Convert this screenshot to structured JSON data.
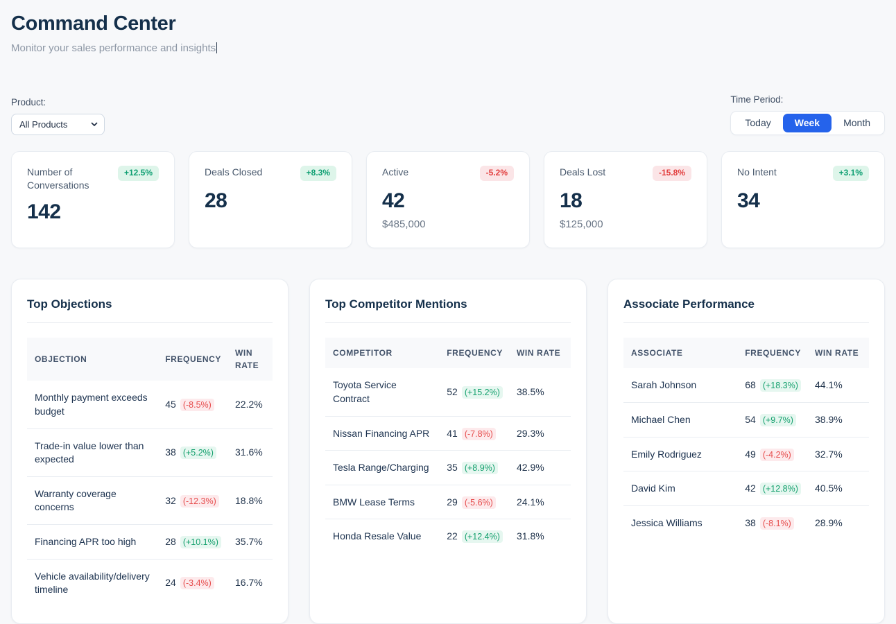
{
  "page": {
    "title": "Command Center",
    "subtitle": "Monitor your sales performance and insights"
  },
  "filters": {
    "product_label": "Product:",
    "product_selected": "All Products",
    "time_period_label": "Time Period:",
    "time_options": [
      {
        "label": "Today",
        "selected": false
      },
      {
        "label": "Week",
        "selected": true
      },
      {
        "label": "Month",
        "selected": false
      }
    ]
  },
  "stats": [
    {
      "label": "Number of Conversations",
      "badge": "+12.5%",
      "trend": "up",
      "value": "142",
      "sub": ""
    },
    {
      "label": "Deals Closed",
      "badge": "+8.3%",
      "trend": "up",
      "value": "28",
      "sub": ""
    },
    {
      "label": "Active",
      "badge": "-5.2%",
      "trend": "down",
      "value": "42",
      "sub": "$485,000"
    },
    {
      "label": "Deals Lost",
      "badge": "-15.8%",
      "trend": "down",
      "value": "18",
      "sub": "$125,000"
    },
    {
      "label": "No Intent",
      "badge": "+3.1%",
      "trend": "up",
      "value": "34",
      "sub": ""
    }
  ],
  "tables": [
    {
      "title": "Top Objections",
      "columns": [
        "Objection",
        "Frequency",
        "Win Rate"
      ],
      "rows": [
        {
          "name": "Monthly payment exceeds budget",
          "frequency": "45",
          "change": "(-8.5%)",
          "trend": "down",
          "win_rate": "22.2%"
        },
        {
          "name": "Trade-in value lower than expected",
          "frequency": "38",
          "change": "(+5.2%)",
          "trend": "up",
          "win_rate": "31.6%"
        },
        {
          "name": "Warranty coverage concerns",
          "frequency": "32",
          "change": "(-12.3%)",
          "trend": "down",
          "win_rate": "18.8%"
        },
        {
          "name": "Financing APR too high",
          "frequency": "28",
          "change": "(+10.1%)",
          "trend": "up",
          "win_rate": "35.7%"
        },
        {
          "name": "Vehicle availability/delivery timeline",
          "frequency": "24",
          "change": "(-3.4%)",
          "trend": "down",
          "win_rate": "16.7%"
        }
      ]
    },
    {
      "title": "Top Competitor Mentions",
      "columns": [
        "Competitor",
        "Frequency",
        "Win Rate"
      ],
      "rows": [
        {
          "name": "Toyota Service Contract",
          "frequency": "52",
          "change": "(+15.2%)",
          "trend": "up",
          "win_rate": "38.5%"
        },
        {
          "name": "Nissan Financing APR",
          "frequency": "41",
          "change": "(-7.8%)",
          "trend": "down",
          "win_rate": "29.3%"
        },
        {
          "name": "Tesla Range/Charging",
          "frequency": "35",
          "change": "(+8.9%)",
          "trend": "up",
          "win_rate": "42.9%"
        },
        {
          "name": "BMW Lease Terms",
          "frequency": "29",
          "change": "(-5.6%)",
          "trend": "down",
          "win_rate": "24.1%"
        },
        {
          "name": "Honda Resale Value",
          "frequency": "22",
          "change": "(+12.4%)",
          "trend": "up",
          "win_rate": "31.8%"
        }
      ]
    },
    {
      "title": "Associate Performance",
      "columns": [
        "Associate",
        "Frequency",
        "Win Rate"
      ],
      "rows": [
        {
          "name": "Sarah Johnson",
          "frequency": "68",
          "change": "(+18.3%)",
          "trend": "up",
          "win_rate": "44.1%"
        },
        {
          "name": "Michael Chen",
          "frequency": "54",
          "change": "(+9.7%)",
          "trend": "up",
          "win_rate": "38.9%"
        },
        {
          "name": "Emily Rodriguez",
          "frequency": "49",
          "change": "(-4.2%)",
          "trend": "down",
          "win_rate": "32.7%"
        },
        {
          "name": "David Kim",
          "frequency": "42",
          "change": "(+12.8%)",
          "trend": "up",
          "win_rate": "40.5%"
        },
        {
          "name": "Jessica Williams",
          "frequency": "38",
          "change": "(-8.1%)",
          "trend": "down",
          "win_rate": "28.9%"
        }
      ]
    }
  ],
  "colors": {
    "accent_blue": "#2563eb",
    "positive_green": "#0e9f72",
    "negative_red": "#e23d3d",
    "title_navy": "#15304b",
    "page_background": "#f7f8fa"
  }
}
